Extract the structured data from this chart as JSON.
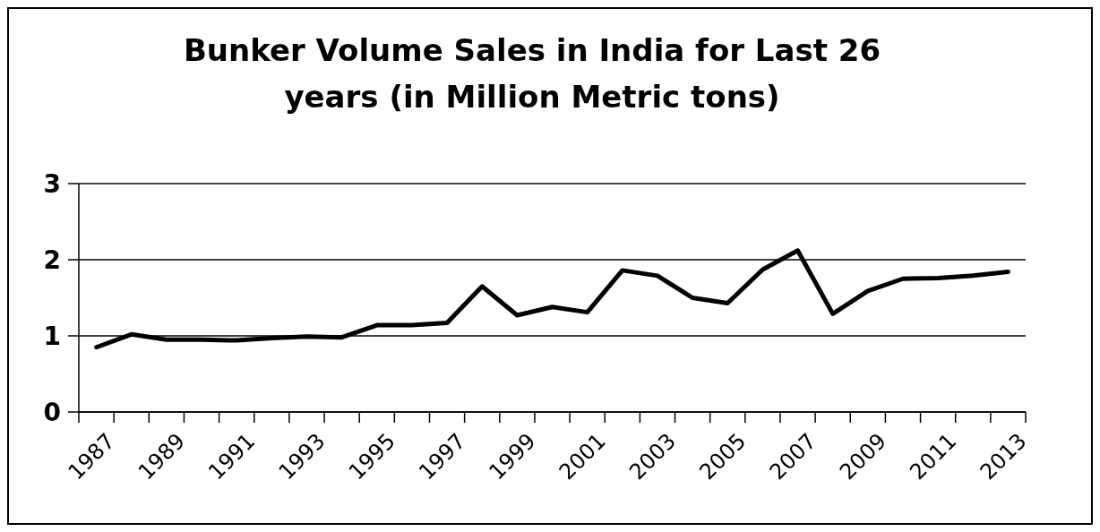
{
  "chart_data": {
    "type": "line",
    "title": "Bunker Volume Sales in India for Last 26 years (in Million Metric tons)",
    "categories": [
      "1987",
      null,
      "1989",
      null,
      "1991",
      null,
      "1993",
      null,
      "1995",
      null,
      "1997",
      null,
      "1999",
      null,
      "2001",
      null,
      "2003",
      null,
      "2005",
      null,
      "2007",
      null,
      "2009",
      null,
      "2011",
      null,
      "2013"
    ],
    "series": [
      {
        "color": "#000000",
        "values": [
          0.85,
          1.02,
          0.95,
          0.95,
          0.94,
          0.97,
          0.99,
          0.98,
          1.14,
          1.14,
          1.17,
          1.65,
          1.27,
          1.38,
          1.31,
          1.86,
          1.79,
          1.5,
          1.43,
          1.87,
          2.12,
          1.29,
          1.59,
          1.75,
          1.76,
          1.79,
          1.84
        ]
      }
    ],
    "ylim": [
      0,
      3
    ],
    "yticks": [
      0,
      1,
      2,
      3
    ],
    "grid": "y",
    "marker": "none",
    "line_style": "solid"
  }
}
